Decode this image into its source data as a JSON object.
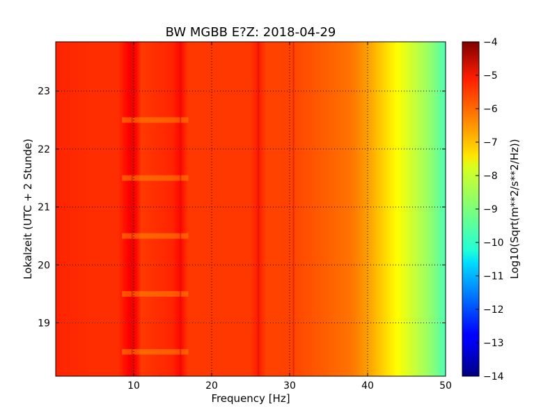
{
  "chart_data": {
    "type": "heatmap",
    "title": "BW MGBB E?Z: 2018-04-29",
    "xlabel": "Frequency [Hz]",
    "ylabel": "Lokalzeit (UTC + 2 Stunde)",
    "xlim": [
      0,
      50
    ],
    "ylim": [
      23.85,
      18.08
    ],
    "y_axis_inverted": true,
    "x_ticks": [
      10,
      20,
      30,
      40,
      50
    ],
    "x_tick_labels": [
      "10",
      "20",
      "30",
      "40",
      "50"
    ],
    "y_ticks": [
      19,
      20,
      21,
      22,
      23
    ],
    "y_tick_labels": [
      "19",
      "20",
      "21",
      "22",
      "23"
    ],
    "grid": true,
    "colormap": "jet",
    "colorbar": {
      "label": "Log10(Sqrt(m**2/s**2/Hz))",
      "range": [
        -14,
        -4
      ],
      "ticks": [
        -4,
        -5,
        -6,
        -7,
        -8,
        -9,
        -10,
        -11,
        -12,
        -13,
        -14
      ],
      "tick_labels": [
        "−4",
        "−5",
        "−6",
        "−7",
        "−8",
        "−9",
        "−10",
        "−11",
        "−12",
        "−13",
        "−14"
      ]
    },
    "spectrum_profile": {
      "frequency_hz": [
        0,
        5,
        8,
        9.5,
        10,
        11,
        15,
        16,
        17,
        20,
        25,
        26,
        27,
        30,
        35,
        38,
        40,
        42,
        44,
        46,
        48,
        50
      ],
      "log10_psd": [
        -5.6,
        -5.7,
        -5.7,
        -5.2,
        -5.1,
        -5.8,
        -5.6,
        -5.3,
        -5.8,
        -5.8,
        -5.8,
        -5.5,
        -5.9,
        -5.9,
        -6.2,
        -6.4,
        -6.8,
        -7.3,
        -7.8,
        -8.3,
        -8.8,
        -9.5
      ]
    },
    "notable_lines_hz": [
      9.8,
      16,
      26,
      30.5
    ],
    "dropout_times": [
      18.5,
      19.5,
      20.5,
      21.5,
      22.5
    ]
  }
}
